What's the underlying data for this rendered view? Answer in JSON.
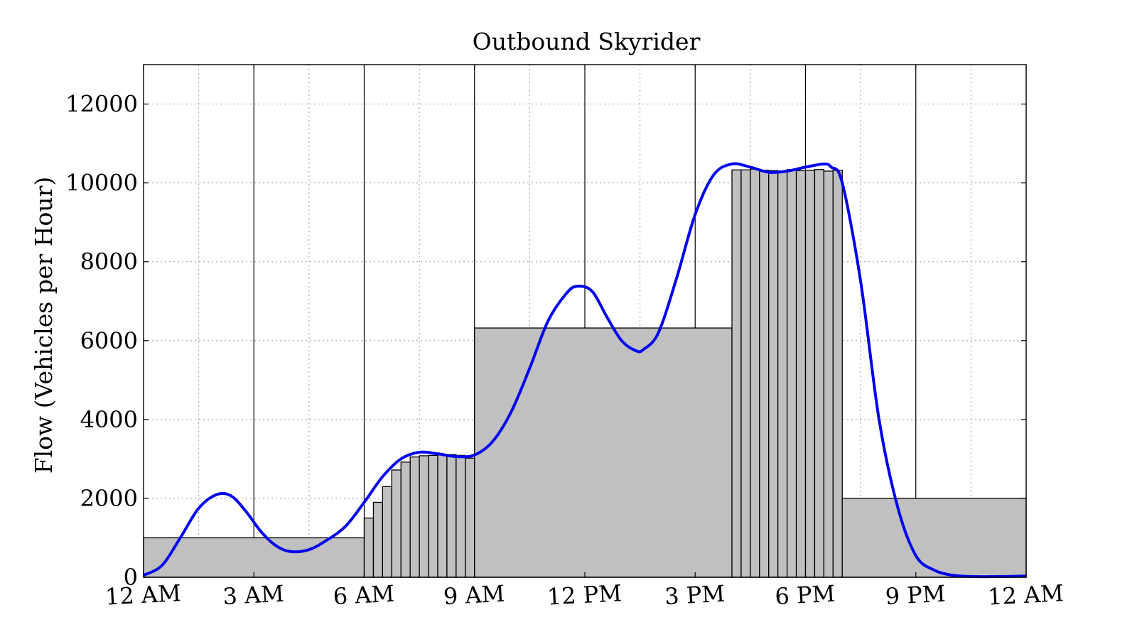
{
  "chart_data": {
    "type": "bar",
    "title": "Outbound Skyrider",
    "xlabel": "",
    "ylabel": "Flow (Vehicles per Hour)",
    "xlim": [
      0,
      24
    ],
    "ylim": [
      0,
      13000
    ],
    "grid": true,
    "legend": "none",
    "x_ticks": [
      {
        "value": 0,
        "label": "12 AM"
      },
      {
        "value": 3,
        "label": "3 AM"
      },
      {
        "value": 6,
        "label": "6 AM"
      },
      {
        "value": 9,
        "label": "9 AM"
      },
      {
        "value": 12,
        "label": "12 PM"
      },
      {
        "value": 15,
        "label": "3 PM"
      },
      {
        "value": 18,
        "label": "6 PM"
      },
      {
        "value": 21,
        "label": "9 PM"
      },
      {
        "value": 24,
        "label": "12 AM"
      }
    ],
    "y_ticks": [
      {
        "value": 0,
        "label": "0"
      },
      {
        "value": 2000,
        "label": "2000"
      },
      {
        "value": 4000,
        "label": "4000"
      },
      {
        "value": 6000,
        "label": "6000"
      },
      {
        "value": 8000,
        "label": "8000"
      },
      {
        "value": 10000,
        "label": "10000"
      },
      {
        "value": 12000,
        "label": "12000"
      }
    ],
    "bars": [
      {
        "x0": 0,
        "x1": 6,
        "value": 1000
      },
      {
        "x0": 6,
        "x1": 6.25,
        "value": 1500
      },
      {
        "x0": 6.25,
        "x1": 6.5,
        "value": 1900
      },
      {
        "x0": 6.5,
        "x1": 6.75,
        "value": 2300
      },
      {
        "x0": 6.75,
        "x1": 7,
        "value": 2720
      },
      {
        "x0": 7,
        "x1": 7.25,
        "value": 2920
      },
      {
        "x0": 7.25,
        "x1": 7.5,
        "value": 3050
      },
      {
        "x0": 7.5,
        "x1": 7.75,
        "value": 3080
      },
      {
        "x0": 7.75,
        "x1": 8,
        "value": 3090
      },
      {
        "x0": 8,
        "x1": 8.25,
        "value": 3100
      },
      {
        "x0": 8.25,
        "x1": 8.5,
        "value": 3110
      },
      {
        "x0": 8.5,
        "x1": 8.75,
        "value": 3090
      },
      {
        "x0": 8.75,
        "x1": 9,
        "value": 3020
      },
      {
        "x0": 9,
        "x1": 16,
        "value": 6320
      },
      {
        "x0": 16,
        "x1": 16.25,
        "value": 10330
      },
      {
        "x0": 16.25,
        "x1": 16.5,
        "value": 10330
      },
      {
        "x0": 16.5,
        "x1": 16.75,
        "value": 10350
      },
      {
        "x0": 16.75,
        "x1": 17,
        "value": 10320
      },
      {
        "x0": 17,
        "x1": 17.25,
        "value": 10310
      },
      {
        "x0": 17.25,
        "x1": 17.5,
        "value": 10300
      },
      {
        "x0": 17.5,
        "x1": 17.75,
        "value": 10340
      },
      {
        "x0": 17.75,
        "x1": 18,
        "value": 10310
      },
      {
        "x0": 18,
        "x1": 18.25,
        "value": 10320
      },
      {
        "x0": 18.25,
        "x1": 18.5,
        "value": 10340
      },
      {
        "x0": 18.5,
        "x1": 18.75,
        "value": 10300
      },
      {
        "x0": 18.75,
        "x1": 19,
        "value": 10320
      },
      {
        "x0": 19,
        "x1": 24,
        "value": 2000
      }
    ],
    "series": [
      {
        "type": "line",
        "x": [
          0,
          0.5,
          1,
          1.5,
          2,
          2.4,
          2.8,
          3.2,
          3.6,
          4,
          4.5,
          5,
          5.5,
          6,
          6.5,
          7,
          7.5,
          8,
          8.5,
          9,
          9.5,
          10,
          10.5,
          11,
          11.5,
          11.8,
          12.2,
          12.6,
          13,
          13.4,
          13.6,
          14,
          14.5,
          15,
          15.5,
          16,
          16.5,
          17,
          17.5,
          18,
          18.5,
          18.7,
          19,
          19.5,
          20,
          20.5,
          21,
          21.5,
          22,
          22.5,
          23,
          24
        ],
        "values": [
          50,
          300,
          1000,
          1750,
          2100,
          2050,
          1650,
          1150,
          800,
          650,
          700,
          950,
          1300,
          1900,
          2550,
          3000,
          3170,
          3130,
          3060,
          3100,
          3450,
          4200,
          5300,
          6500,
          7200,
          7380,
          7250,
          6600,
          6000,
          5740,
          5780,
          6200,
          7600,
          9200,
          10200,
          10480,
          10400,
          10270,
          10300,
          10400,
          10480,
          10400,
          10000,
          7500,
          4000,
          1800,
          550,
          180,
          50,
          20,
          15,
          30
        ]
      }
    ],
    "colors": {
      "bar_fill": "#c0c0c0",
      "bar_edge": "#000000",
      "line": "#0000ee",
      "grid_minor": "#9a9a9a",
      "grid_major": "#000000"
    }
  }
}
